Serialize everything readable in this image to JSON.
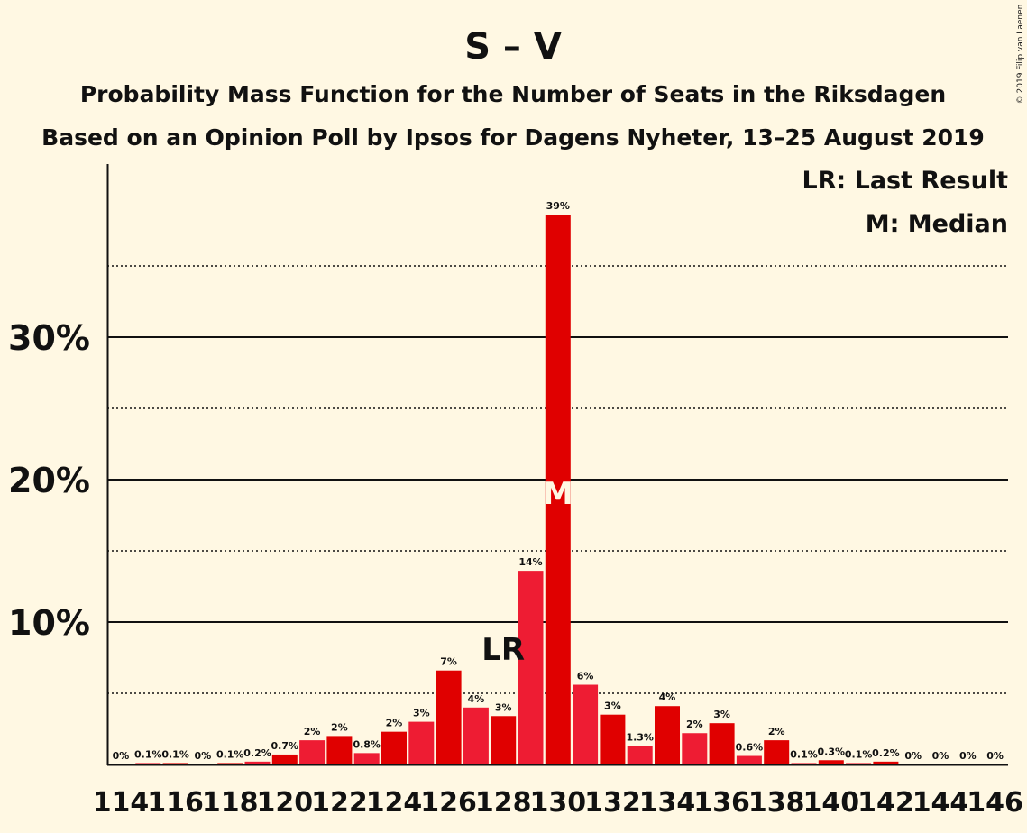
{
  "chart_data": {
    "type": "bar",
    "title": "S – V",
    "subtitle_1": "Probability Mass Function for the Number of Seats in the Riksdagen",
    "subtitle_2": "Based on an Opinion Poll by Ipsos for Dagens Nyheter, 13–25 August 2019",
    "copyright": "© 2019 Filip van Laenen",
    "legend": {
      "last_result": "LR: Last Result",
      "median": "M: Median",
      "position": "top-right"
    },
    "ylim": [
      0,
      42
    ],
    "yticks": [
      {
        "value": 10,
        "label": "10%"
      },
      {
        "value": 20,
        "label": "20%"
      },
      {
        "value": 30,
        "label": "30%"
      }
    ],
    "dotted_gridlines": [
      5,
      15,
      25,
      35
    ],
    "seats": [
      114,
      115,
      116,
      117,
      118,
      119,
      120,
      121,
      122,
      123,
      124,
      125,
      126,
      127,
      128,
      129,
      130,
      131,
      132,
      133,
      134,
      135,
      136,
      137,
      138,
      139,
      140,
      141,
      142,
      143,
      144,
      145,
      146
    ],
    "values": [
      0,
      0.1,
      0.1,
      0,
      0.1,
      0.2,
      0.7,
      1.7,
      2.0,
      0.8,
      2.3,
      3.0,
      6.6,
      4.0,
      3.4,
      13.6,
      38.6,
      5.6,
      3.5,
      1.3,
      4.1,
      2.2,
      2.9,
      0.6,
      1.7,
      0.1,
      0.3,
      0.1,
      0.2,
      0,
      0,
      0,
      0
    ],
    "labels": [
      "0%",
      "0.1%",
      "0.1%",
      "0%",
      "0.1%",
      "0.2%",
      "0.7%",
      "2%",
      "2%",
      "0.8%",
      "2%",
      "3%",
      "7%",
      "4%",
      "3%",
      "14%",
      "39%",
      "6%",
      "3%",
      "1.3%",
      "4%",
      "2%",
      "3%",
      "0.6%",
      "2%",
      "0.1%",
      "0.3%",
      "0.1%",
      "0.2%",
      "0%",
      "0%",
      "0%",
      "0%"
    ],
    "xtick_labels": [
      "114",
      "116",
      "118",
      "120",
      "122",
      "124",
      "126",
      "128",
      "130",
      "132",
      "134",
      "136",
      "138",
      "140",
      "142",
      "144",
      "146"
    ],
    "last_result": {
      "seat": 128,
      "label": "LR"
    },
    "median": {
      "seat": 130,
      "label": "M"
    },
    "colors": {
      "bar_odd": "#EE1C33",
      "bar_even": "#E00000",
      "background": "#FFF8E3",
      "text": "#111111",
      "median_text": "#FFF8E3"
    }
  }
}
